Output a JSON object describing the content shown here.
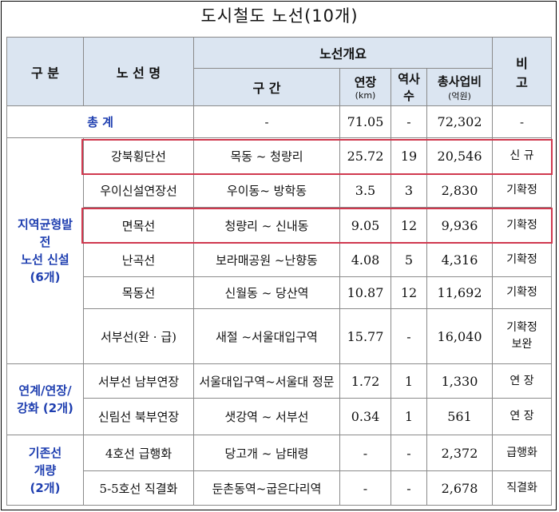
{
  "title": "도시철도 노선(10개)",
  "header": {
    "category": "구 분",
    "line_name": "노 선 명",
    "overview": "노선개요",
    "section": "구 간",
    "length": "연장",
    "length_unit": "(km)",
    "stations_top": "역사",
    "stations_bottom": "수",
    "cost": "총사업비",
    "cost_unit": "(억원)",
    "remark_top": "비",
    "remark_bottom": "고"
  },
  "total": {
    "label": "총 계",
    "section": "-",
    "length": "71.05",
    "stations": "-",
    "cost": "72,302",
    "remark": "-"
  },
  "groups": [
    {
      "label_lines": [
        "지역균형발",
        "전",
        "노선 신설",
        "(6개)"
      ]
    },
    {
      "label_lines": [
        "연계/연장/",
        "강화 (2개)"
      ]
    },
    {
      "label_lines": [
        "기존선",
        "개량",
        "(2개)"
      ]
    }
  ],
  "rows": [
    {
      "name": "강북횡단선",
      "section": "목동 ~ 청량리",
      "length": "25.72",
      "stations": "19",
      "cost": "20,546",
      "remark_lines": [
        "신 규"
      ]
    },
    {
      "name": "우이신설연장선",
      "section": "우이동~ 방학동",
      "length": "3.5",
      "stations": "3",
      "cost": "2,830",
      "remark_lines": [
        "기확정"
      ]
    },
    {
      "name": "면목선",
      "section": "청량리 ~ 신내동",
      "length": "9.05",
      "stations": "12",
      "cost": "9,936",
      "remark_lines": [
        "기확정"
      ]
    },
    {
      "name": "난곡선",
      "section": "보라매공원 ~난향동",
      "length": "4.08",
      "stations": "5",
      "cost": "4,316",
      "remark_lines": [
        "기확정"
      ]
    },
    {
      "name": "목동선",
      "section": "신월동 ~ 당산역",
      "length": "10.87",
      "stations": "12",
      "cost": "11,692",
      "remark_lines": [
        "기확정"
      ]
    },
    {
      "name": "서부선(완 · 급)",
      "section": "새절 ~서울대입구역",
      "length": "15.77",
      "stations": "-",
      "cost": "16,040",
      "remark_lines": [
        "기확정",
        "보완"
      ]
    },
    {
      "name": "서부선 남부연장",
      "section": "서울대입구역~서울대 정문",
      "length": "1.72",
      "stations": "1",
      "cost": "1,330",
      "remark_lines": [
        "연 장"
      ]
    },
    {
      "name": "신림선 북부연장",
      "section": "샛강역 ~ 서부선",
      "length": "0.34",
      "stations": "1",
      "cost": "561",
      "remark_lines": [
        "연 장"
      ]
    },
    {
      "name": "4호선 급행화",
      "section": "당고개 ~ 남태령",
      "length": "-",
      "stations": "-",
      "cost": "2,372",
      "remark_lines": [
        "급행화"
      ]
    },
    {
      "name": "5-5호선 직결화",
      "section": "둔촌동역~굽은다리역",
      "length": "-",
      "stations": "-",
      "cost": "2,678",
      "remark_lines": [
        "직결화"
      ]
    }
  ],
  "colors": {
    "header_bg": "#dbe5f1",
    "group_text": "#1f3fb0",
    "highlight": "#d0394f"
  }
}
